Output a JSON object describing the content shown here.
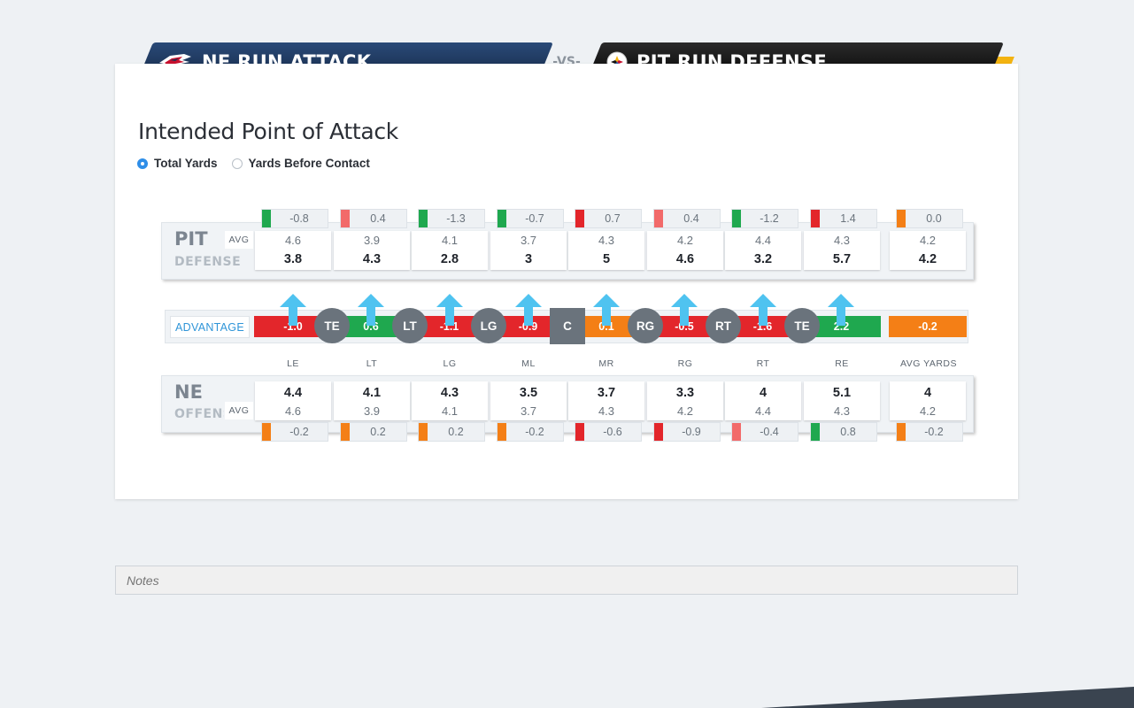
{
  "header": {
    "left_title": "NE RUN ATTACK",
    "vs": "-VS-",
    "right_title": "PIT RUN DEFENSE",
    "left_logo": "patriots-logo-icon",
    "right_logo": "steelers-logo-icon",
    "colors": {
      "ne_navy": "#1b2f52",
      "ne_red": "#c8102e",
      "pit_black": "#111111",
      "pit_gold": "#f3b310"
    }
  },
  "section_title": "Intended Point of Attack",
  "toggle": {
    "options": [
      "Total Yards",
      "Yards Before Contact"
    ],
    "selected": "Total Yards"
  },
  "defense": {
    "team": "PIT",
    "label": "DEFENSE",
    "avg_label": "AVG",
    "columns": [
      {
        "diff": "-0.8",
        "diff_color": "#1fa84f",
        "avg": "4.6",
        "value": "3.8"
      },
      {
        "diff": "0.4",
        "diff_color": "#f26a6a",
        "avg": "3.9",
        "value": "4.3"
      },
      {
        "diff": "-1.3",
        "diff_color": "#1fa84f",
        "avg": "4.1",
        "value": "2.8"
      },
      {
        "diff": "-0.7",
        "diff_color": "#1fa84f",
        "avg": "3.7",
        "value": "3"
      },
      {
        "diff": "0.7",
        "diff_color": "#e3262b",
        "avg": "4.3",
        "value": "5"
      },
      {
        "diff": "0.4",
        "diff_color": "#f26a6a",
        "avg": "4.2",
        "value": "4.6"
      },
      {
        "diff": "-1.2",
        "diff_color": "#1fa84f",
        "avg": "4.4",
        "value": "3.2"
      },
      {
        "diff": "1.4",
        "diff_color": "#e3262b",
        "avg": "4.3",
        "value": "5.7"
      }
    ],
    "total": {
      "diff": "0.0",
      "diff_color": "#f47f16",
      "avg": "4.2",
      "value": "4.2"
    }
  },
  "advantage": {
    "label": "ADVANTAGE",
    "segments": [
      {
        "value": "-1.0",
        "color": "#e3262b"
      },
      {
        "value": "0.6",
        "color": "#1fa84f"
      },
      {
        "value": "-1.1",
        "color": "#e3262b"
      },
      {
        "value": "-0.9",
        "color": "#e3262b"
      },
      {
        "value": "0.1",
        "color": "#f47f16"
      },
      {
        "value": "-0.5",
        "color": "#e3262b"
      },
      {
        "value": "-1.6",
        "color": "#e3262b"
      },
      {
        "value": "2.2",
        "color": "#1fa84f"
      }
    ],
    "total": {
      "value": "-0.2",
      "color": "#f47f16"
    },
    "players": [
      "TE",
      "LT",
      "LG",
      "C",
      "RG",
      "RT",
      "TE"
    ],
    "arrow_color": "#4fc3f0"
  },
  "columns_labels": [
    "LE",
    "LT",
    "LG",
    "ML",
    "MR",
    "RG",
    "RT",
    "RE",
    "AVG YARDS"
  ],
  "offense": {
    "team": "NE",
    "label": "OFFENSE",
    "avg_label": "AVG",
    "columns": [
      {
        "value": "4.4",
        "avg": "4.6",
        "diff": "-0.2",
        "diff_color": "#f47f16"
      },
      {
        "value": "4.1",
        "avg": "3.9",
        "diff": "0.2",
        "diff_color": "#f47f16"
      },
      {
        "value": "4.3",
        "avg": "4.1",
        "diff": "0.2",
        "diff_color": "#f47f16"
      },
      {
        "value": "3.5",
        "avg": "3.7",
        "diff": "-0.2",
        "diff_color": "#f47f16"
      },
      {
        "value": "3.7",
        "avg": "4.3",
        "diff": "-0.6",
        "diff_color": "#e3262b"
      },
      {
        "value": "3.3",
        "avg": "4.2",
        "diff": "-0.9",
        "diff_color": "#e3262b"
      },
      {
        "value": "4",
        "avg": "4.4",
        "diff": "-0.4",
        "diff_color": "#f26a6a"
      },
      {
        "value": "5.1",
        "avg": "4.3",
        "diff": "0.8",
        "diff_color": "#1fa84f"
      }
    ],
    "total": {
      "value": "4",
      "avg": "4.2",
      "diff": "-0.2",
      "diff_color": "#f47f16"
    }
  },
  "notes": {
    "placeholder": "Notes"
  }
}
